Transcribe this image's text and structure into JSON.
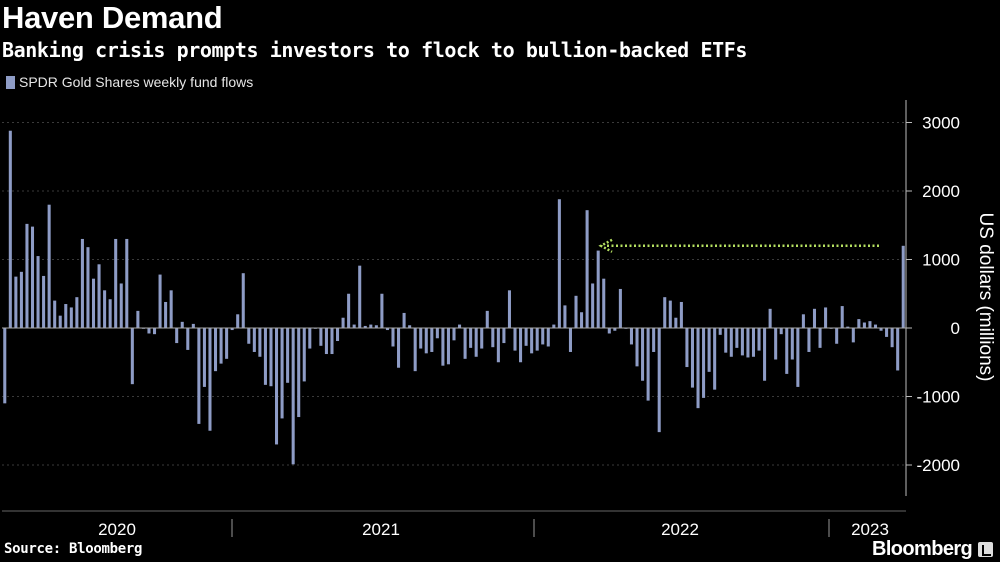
{
  "header": {
    "title": "Haven Demand",
    "subtitle": "Banking crisis prompts investors to flock to bullion-backed ETFs"
  },
  "footer": {
    "source": "Source: Bloomberg",
    "brand": "Bloomberg"
  },
  "colors": {
    "background": "#000000",
    "bar": "#8e9cc6",
    "annotation_arrow": "#b5e061",
    "grid": "#3a3a3a",
    "text": "#ffffff"
  },
  "chart_data": {
    "type": "bar",
    "title": "Haven Demand",
    "ylabel": "US dollars (millions)",
    "ylim": [
      -2400,
      3300
    ],
    "yticks": [
      -2000,
      -1000,
      0,
      1000,
      2000,
      3000
    ],
    "ytick_labels": [
      "-2000",
      "-1000",
      "0",
      "1000",
      "2000",
      "3000"
    ],
    "xlabel_years": [
      "2020",
      "2021",
      "2022",
      "2023"
    ],
    "legend": [
      "SPDR Gold Shares weekly fund flows"
    ],
    "annotation": {
      "type": "arrow",
      "from_value": 1200,
      "points_to": "latest weekly inflow compared with 2022 peaks"
    },
    "series": [
      {
        "name": "SPDR Gold Shares weekly fund flows",
        "values": [
          -1100,
          2880,
          750,
          820,
          1520,
          1480,
          1050,
          760,
          1800,
          400,
          180,
          350,
          300,
          450,
          1300,
          1180,
          720,
          930,
          550,
          420,
          1300,
          650,
          1300,
          -820,
          250,
          0,
          -80,
          -90,
          780,
          380,
          550,
          -220,
          90,
          -320,
          60,
          -1400,
          -860,
          -1500,
          -630,
          -520,
          -450,
          -30,
          200,
          800,
          -230,
          -350,
          -420,
          -830,
          -850,
          -1700,
          -1320,
          -800,
          -1990,
          -1300,
          -780,
          -300,
          0,
          -260,
          -380,
          -380,
          -190,
          150,
          500,
          50,
          910,
          30,
          50,
          40,
          500,
          -30,
          -270,
          -580,
          220,
          40,
          -630,
          -300,
          -370,
          -350,
          -150,
          -550,
          -530,
          -180,
          50,
          -450,
          -290,
          -420,
          -300,
          250,
          -280,
          -500,
          -220,
          550,
          -330,
          -500,
          -260,
          -370,
          -330,
          -240,
          -270,
          50,
          1880,
          330,
          -350,
          470,
          230,
          1720,
          650,
          1130,
          720,
          -80,
          -40,
          570,
          0,
          -240,
          -560,
          -770,
          -1060,
          -350,
          -1520,
          450,
          400,
          150,
          380,
          -570,
          -870,
          -1170,
          -1020,
          -640,
          -900,
          -100,
          -360,
          -420,
          -290,
          -400,
          -430,
          -420,
          -330,
          -770,
          280,
          -460,
          -90,
          -670,
          -460,
          -860,
          200,
          -350,
          280,
          -290,
          300,
          0,
          -230,
          320,
          20,
          -210,
          130,
          80,
          100,
          50,
          -40,
          -130,
          -280,
          -620,
          1200
        ]
      }
    ]
  }
}
